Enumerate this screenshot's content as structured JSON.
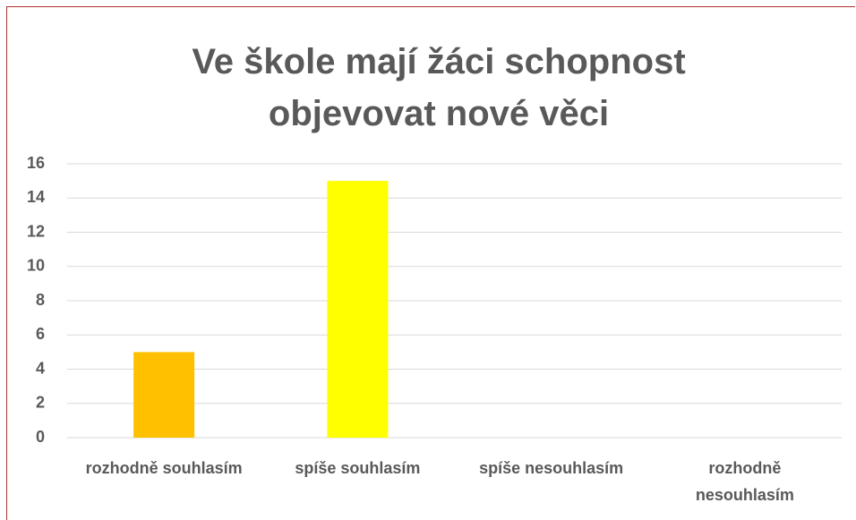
{
  "chart_data": {
    "type": "bar",
    "title": "Ve škole mají žáci schopnost objevovat nové věci",
    "categories": [
      "rozhodně souhlasím",
      "spíše souhlasím",
      "spíše nesouhlasím",
      "rozhodně nesouhlasím"
    ],
    "values": [
      5,
      15,
      0,
      0
    ],
    "colors": [
      "#FFC000",
      "#FFFF00",
      "#FFC000",
      "#FFFF00"
    ],
    "ylim": [
      0,
      16
    ],
    "yticks": [
      0,
      2,
      4,
      6,
      8,
      10,
      12,
      14,
      16
    ],
    "grid": true
  }
}
